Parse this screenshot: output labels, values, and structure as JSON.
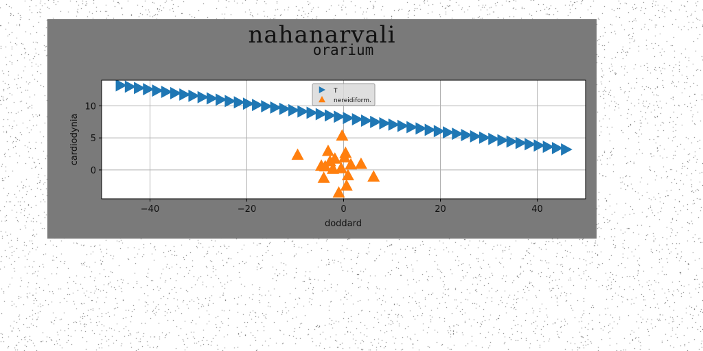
{
  "figure": {
    "suptitle": "nahanarvali",
    "background_color": "#7a7a7a",
    "page_background": "#ffffff"
  },
  "chart_data": {
    "type": "scatter",
    "title": "orarium",
    "xlabel": "doddard",
    "ylabel": "cardiodynia",
    "xlim": [
      -50,
      50
    ],
    "ylim": [
      -4.5,
      14
    ],
    "xticks": [
      -40,
      -20,
      0,
      20,
      40
    ],
    "yticks": [
      0,
      5,
      10
    ],
    "grid": true,
    "legend_position": "top-center",
    "series": [
      {
        "name": "T",
        "marker": "triangle-right",
        "color": "#1f77b4",
        "x": [
          -46,
          -44.12,
          -42.24,
          -40.37,
          -38.49,
          -36.61,
          -34.73,
          -32.86,
          -30.98,
          -29.1,
          -27.22,
          -25.35,
          -23.47,
          -21.59,
          -19.71,
          -17.84,
          -15.96,
          -14.08,
          -12.2,
          -10.33,
          -8.45,
          -6.57,
          -4.69,
          -2.82,
          -0.94,
          0.94,
          2.82,
          4.69,
          6.57,
          8.45,
          10.33,
          12.2,
          14.08,
          15.96,
          17.84,
          19.71,
          21.59,
          23.47,
          25.35,
          27.22,
          29.1,
          30.98,
          32.86,
          34.73,
          36.61,
          38.49,
          40.37,
          42.24,
          44.12,
          46
        ],
        "y": [
          13.2,
          13.0,
          12.79,
          12.59,
          12.38,
          12.18,
          11.98,
          11.77,
          11.57,
          11.36,
          11.16,
          10.96,
          10.75,
          10.55,
          10.34,
          10.14,
          9.94,
          9.73,
          9.53,
          9.32,
          9.12,
          8.92,
          8.71,
          8.51,
          8.3,
          8.1,
          7.9,
          7.69,
          7.49,
          7.28,
          7.08,
          6.88,
          6.67,
          6.47,
          6.26,
          6.06,
          5.86,
          5.65,
          5.45,
          5.24,
          5.04,
          4.84,
          4.63,
          4.43,
          4.22,
          4.02,
          3.82,
          3.61,
          3.41,
          3.2
        ]
      },
      {
        "name": "nereidiform.",
        "marker": "triangle-up",
        "color": "#ff7f0e",
        "x": [
          -9.5,
          -0.3,
          -3.2,
          -1.8,
          0.4,
          -4.6,
          -2.2,
          1.5,
          3.6,
          -3.8,
          0.9,
          6.2,
          -4.1,
          0.6,
          -1.0,
          -2.8,
          -0.5,
          0.2
        ],
        "y": [
          2.4,
          5.4,
          3.0,
          1.8,
          2.7,
          0.7,
          0.2,
          0.9,
          1.0,
          0.6,
          -0.8,
          -1.0,
          -1.2,
          -2.4,
          -3.5,
          1.4,
          0.3,
          2.0
        ]
      }
    ]
  }
}
